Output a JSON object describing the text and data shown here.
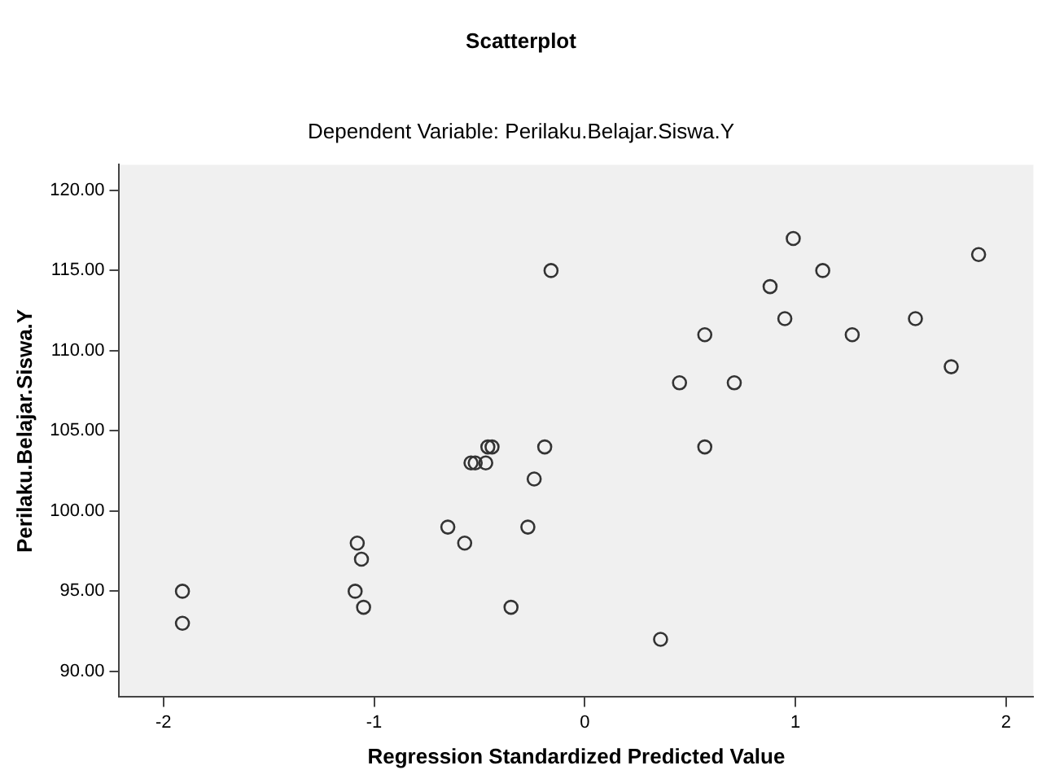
{
  "chart_data": {
    "type": "scatter",
    "title": "Scatterplot",
    "subtitle": "Dependent Variable: Perilaku.Belajar.Siswa.Y",
    "xlabel": "Regression Standardized Predicted Value",
    "ylabel": "Perilaku.Belajar.Siswa.Y",
    "x": [
      -1.91,
      -1.91,
      -1.08,
      -1.06,
      -1.09,
      -1.05,
      -0.65,
      -0.57,
      -0.54,
      -0.52,
      -0.47,
      -0.46,
      -0.44,
      -0.19,
      -0.24,
      -0.27,
      -0.35,
      -0.16,
      0.36,
      0.57,
      0.45,
      0.71,
      0.57,
      0.88,
      0.99,
      0.95,
      1.13,
      1.27,
      1.57,
      1.74,
      1.87
    ],
    "values": [
      95,
      93,
      98,
      97,
      95,
      94,
      99,
      98,
      103,
      103,
      103,
      104,
      104,
      104,
      102,
      99,
      94,
      115,
      92,
      104,
      108,
      108,
      111,
      114,
      117,
      112,
      115,
      111,
      112,
      109,
      116
    ],
    "color": "#333333",
    "marker": "circle",
    "grid": false,
    "legend": false,
    "xlim": [
      -2.21,
      2.13
    ],
    "xticks": [
      -2,
      -1,
      0,
      1,
      2
    ],
    "ylim": [
      88.4,
      121.6
    ],
    "yticks": [
      {
        "value": 90,
        "label": "90.00"
      },
      {
        "value": 95,
        "label": "95.00"
      },
      {
        "value": 100,
        "label": "100.00"
      },
      {
        "value": 105,
        "label": "105.00"
      },
      {
        "value": 110,
        "label": "110.00"
      },
      {
        "value": 115,
        "label": "115.00"
      },
      {
        "value": 120,
        "label": "120.00"
      }
    ]
  }
}
